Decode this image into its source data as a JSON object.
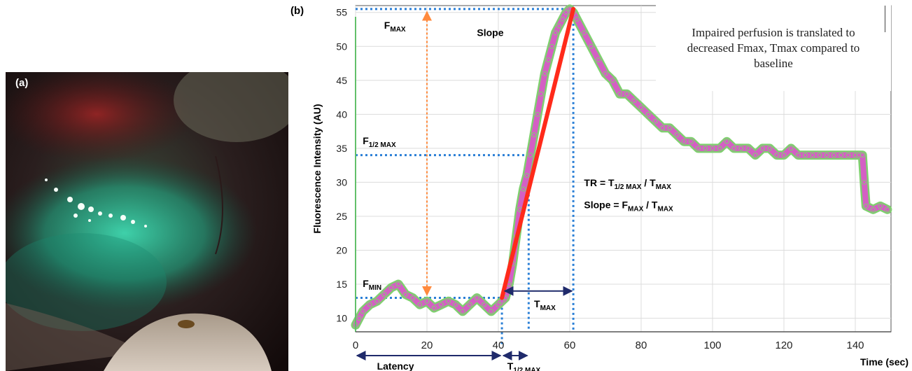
{
  "panel_a": {
    "label": "(a)"
  },
  "panel_b": {
    "label": "(b)"
  },
  "note": {
    "lines": [
      "Impaired perfusion is translated to",
      "decreased Fmax, Tmax compared to",
      "baseline"
    ]
  },
  "annotations": {
    "f_max": "F",
    "f_max_sub": "MAX",
    "f_half": "F",
    "f_half_sub": "1/2 MAX",
    "f_min": "F",
    "f_min_sub": "MIN",
    "slope": "Slope",
    "t_max": "T",
    "t_max_sub": "MAX",
    "t_half": "T",
    "t_half_sub": "1/2 MAX",
    "latency": "Latency",
    "tr_formula": [
      "TR = T",
      "1/2 MAX",
      " / T",
      "MAX"
    ],
    "slope_formula": [
      "Slope = F",
      "MAX",
      " / T",
      "MAX"
    ]
  },
  "chart_data": {
    "type": "line",
    "title": "",
    "xlabel": "Time (sec)",
    "ylabel": "Fluorescence Intensity (AU)",
    "xlim": [
      0,
      150
    ],
    "ylim": [
      8,
      56
    ],
    "xticks": [
      0,
      20,
      40,
      60,
      80,
      100,
      120,
      140
    ],
    "yticks": [
      10,
      15,
      20,
      25,
      30,
      35,
      40,
      45,
      50,
      55
    ],
    "grid": true,
    "series": [
      {
        "points": [
          [
            0,
            9
          ],
          [
            1,
            10
          ],
          [
            2,
            11
          ],
          [
            4,
            12
          ],
          [
            6,
            12.5
          ],
          [
            8,
            13.5
          ],
          [
            10,
            14.5
          ],
          [
            12,
            15
          ],
          [
            14,
            13.5
          ],
          [
            16,
            13
          ],
          [
            18,
            12
          ],
          [
            20,
            12.5
          ],
          [
            22,
            11.5
          ],
          [
            24,
            12
          ],
          [
            26,
            12.5
          ],
          [
            28,
            12
          ],
          [
            30,
            11
          ],
          [
            32,
            12
          ],
          [
            34,
            13
          ],
          [
            36,
            12
          ],
          [
            38,
            11
          ],
          [
            40,
            12
          ],
          [
            41,
            12.5
          ],
          [
            42,
            13
          ],
          [
            43,
            15
          ],
          [
            44,
            18
          ],
          [
            45,
            22
          ],
          [
            46,
            26
          ],
          [
            47,
            29
          ],
          [
            48,
            31
          ],
          [
            49,
            34
          ],
          [
            50,
            37
          ],
          [
            51,
            40
          ],
          [
            52,
            43
          ],
          [
            53,
            46
          ],
          [
            54,
            48
          ],
          [
            55,
            50
          ],
          [
            56,
            52
          ],
          [
            57,
            53
          ],
          [
            58,
            54
          ],
          [
            59,
            55
          ],
          [
            60,
            55.5
          ],
          [
            61,
            55
          ],
          [
            62,
            54
          ],
          [
            64,
            52
          ],
          [
            66,
            50
          ],
          [
            68,
            48
          ],
          [
            70,
            46
          ],
          [
            72,
            45
          ],
          [
            74,
            43
          ],
          [
            76,
            43
          ],
          [
            78,
            42
          ],
          [
            80,
            41
          ],
          [
            82,
            40
          ],
          [
            84,
            39
          ],
          [
            86,
            38
          ],
          [
            88,
            38
          ],
          [
            90,
            37
          ],
          [
            92,
            36
          ],
          [
            94,
            36
          ],
          [
            96,
            35
          ],
          [
            98,
            35
          ],
          [
            100,
            35
          ],
          [
            102,
            35
          ],
          [
            104,
            36
          ],
          [
            106,
            35
          ],
          [
            108,
            35
          ],
          [
            110,
            35
          ],
          [
            112,
            34
          ],
          [
            114,
            35
          ],
          [
            116,
            35
          ],
          [
            118,
            34
          ],
          [
            120,
            34
          ],
          [
            122,
            35
          ],
          [
            124,
            34
          ],
          [
            126,
            34
          ],
          [
            128,
            34
          ],
          [
            130,
            34
          ],
          [
            132,
            34
          ],
          [
            134,
            34
          ],
          [
            136,
            34
          ],
          [
            138,
            34
          ],
          [
            140,
            34
          ],
          [
            141,
            34
          ],
          [
            142,
            34
          ],
          [
            142.5,
            30
          ],
          [
            143,
            26.5
          ],
          [
            145,
            26
          ],
          [
            147,
            26.5
          ],
          [
            149,
            26
          ]
        ]
      }
    ],
    "reference_lines": {
      "f_max": 55.5,
      "f_half": 34,
      "f_min": 13,
      "t_start": 41,
      "t_half": 48.5,
      "t_max": 61
    },
    "colors": {
      "curve": "#d45fc4",
      "curve_outline": "#7fd06f",
      "slope_line": "#ff2a1a",
      "dotted": "#2a7fd6",
      "arrow_orange": "#ff8a3d",
      "arrow_dark": "#1f2a6b",
      "axis_green": "#62c06a"
    }
  }
}
